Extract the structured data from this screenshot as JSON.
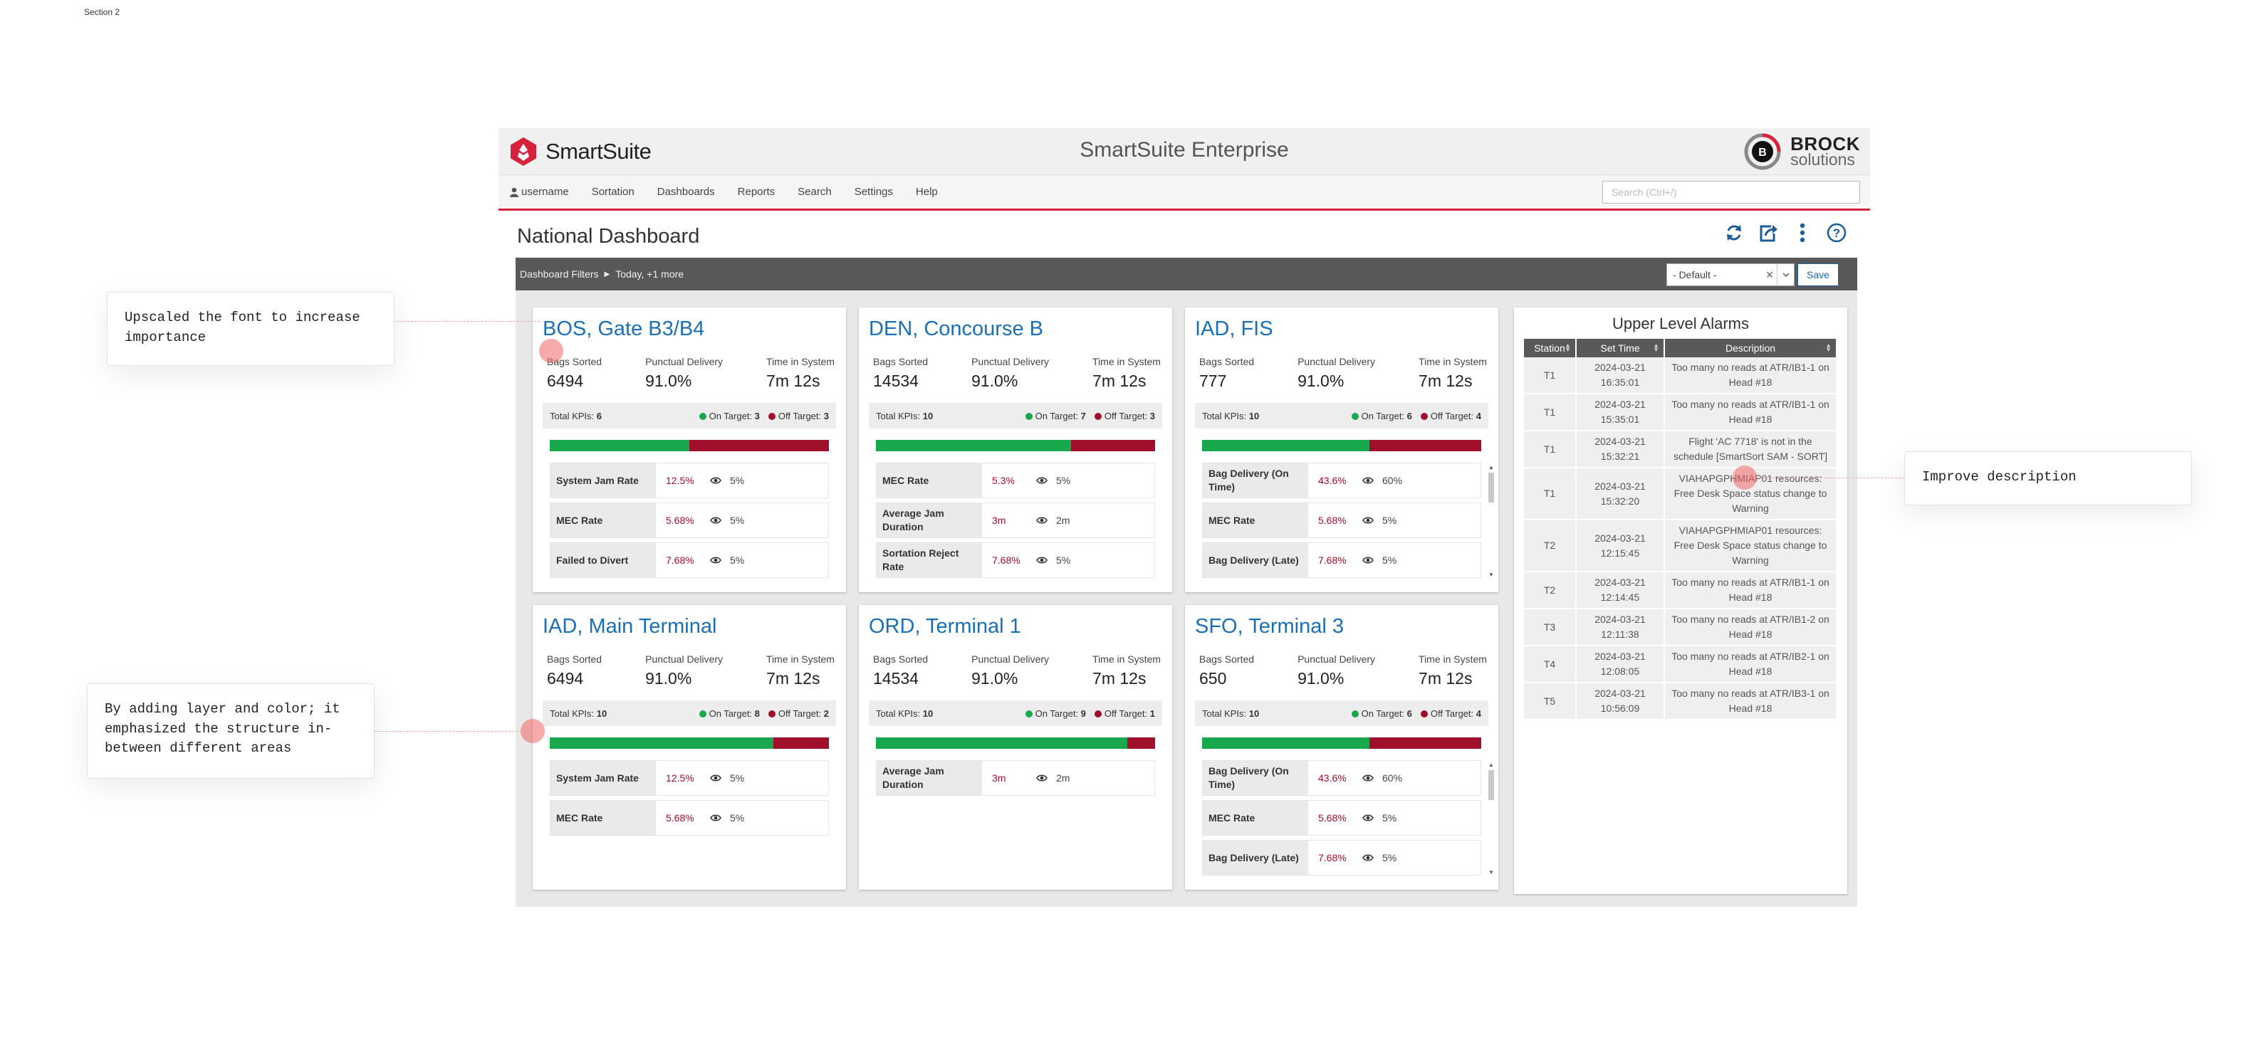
{
  "page": {
    "section_label": "Section 2"
  },
  "header": {
    "brand_name": "SmartSuite",
    "app_title": "SmartSuite Enterprise",
    "partner_logo_line1": "BROCK",
    "partner_logo_line2": "solutions",
    "partner_logo_initial": "B"
  },
  "nav": {
    "items": [
      {
        "label": "username",
        "icon": "user-icon"
      },
      {
        "label": "Sortation"
      },
      {
        "label": "Dashboards"
      },
      {
        "label": "Reports"
      },
      {
        "label": "Search"
      },
      {
        "label": "Settings"
      },
      {
        "label": "Help"
      }
    ],
    "search_placeholder": "Search (Ctrl+/)"
  },
  "page_title": "National Dashboard",
  "toolbar_icons": [
    "refresh-icon",
    "share-icon",
    "more-vertical-icon",
    "help-icon"
  ],
  "filters": {
    "label": "Dashboard Filters",
    "summary": "Today, +1 more",
    "preset_value": "- Default -",
    "save_label": "Save"
  },
  "metric_labels": {
    "bags_sorted": "Bags Sorted",
    "punctual_delivery": "Punctual Delivery",
    "time_in_system": "Time in System",
    "total_kpis": "Total KPIs:",
    "on_target": "On Target:",
    "off_target": "Off Target:"
  },
  "cards": [
    {
      "title": "BOS, Gate B3/B4",
      "bags_sorted": "6494",
      "punctual_delivery": "91.0%",
      "time_in_system": "7m 12s",
      "total_kpis": "6",
      "on_target": "3",
      "off_target": "3",
      "kpis": [
        {
          "name": "System Jam Rate",
          "value": "12.5%",
          "target": "5%"
        },
        {
          "name": "MEC Rate",
          "value": "5.68%",
          "target": "5%"
        },
        {
          "name": "Failed to Divert",
          "value": "7.68%",
          "target": "5%"
        }
      ]
    },
    {
      "title": "DEN, Concourse B",
      "bags_sorted": "14534",
      "punctual_delivery": "91.0%",
      "time_in_system": "7m 12s",
      "total_kpis": "10",
      "on_target": "7",
      "off_target": "3",
      "kpis": [
        {
          "name": "MEC Rate",
          "value": "5.3%",
          "target": "5%"
        },
        {
          "name": "Average Jam Duration",
          "value": "3m",
          "target": "2m"
        },
        {
          "name": "Sortation Reject Rate",
          "value": "7.68%",
          "target": "5%"
        }
      ]
    },
    {
      "title": "IAD, FIS",
      "bags_sorted": "777",
      "punctual_delivery": "91.0%",
      "time_in_system": "7m 12s",
      "total_kpis": "10",
      "on_target": "6",
      "off_target": "4",
      "kpis": [
        {
          "name": "Bag Delivery (On Time)",
          "value": "43.6%",
          "target": "60%"
        },
        {
          "name": "MEC Rate",
          "value": "5.68%",
          "target": "5%"
        },
        {
          "name": "Bag Delivery (Late)",
          "value": "7.68%",
          "target": "5%"
        }
      ]
    },
    {
      "title": "IAD, Main Terminal",
      "bags_sorted": "6494",
      "punctual_delivery": "91.0%",
      "time_in_system": "7m 12s",
      "total_kpis": "10",
      "on_target": "8",
      "off_target": "2",
      "kpis": [
        {
          "name": "System Jam Rate",
          "value": "12.5%",
          "target": "5%"
        },
        {
          "name": "MEC Rate",
          "value": "5.68%",
          "target": "5%"
        }
      ]
    },
    {
      "title": "ORD, Terminal 1",
      "bags_sorted": "14534",
      "punctual_delivery": "91.0%",
      "time_in_system": "7m 12s",
      "total_kpis": "10",
      "on_target": "9",
      "off_target": "1",
      "kpis": [
        {
          "name": "Average Jam Duration",
          "value": "3m",
          "target": "2m"
        }
      ]
    },
    {
      "title": "SFO, Terminal 3",
      "bags_sorted": "650",
      "punctual_delivery": "91.0%",
      "time_in_system": "7m 12s",
      "total_kpis": "10",
      "on_target": "6",
      "off_target": "4",
      "kpis": [
        {
          "name": "Bag Delivery (On Time)",
          "value": "43.6%",
          "target": "60%"
        },
        {
          "name": "MEC Rate",
          "value": "5.68%",
          "target": "5%"
        },
        {
          "name": "Bag Delivery (Late)",
          "value": "7.68%",
          "target": "5%"
        }
      ]
    }
  ],
  "alarms": {
    "title": "Upper Level Alarms",
    "columns": [
      "Station",
      "Set Time",
      "Description"
    ],
    "rows": [
      {
        "station": "T1",
        "date": "2024-03-21",
        "time": "16:35:01",
        "description": "Too many no reads at ATR/IB1-1 on Head #18"
      },
      {
        "station": "T1",
        "date": "2024-03-21",
        "time": "15:35:01",
        "description": "Too many no reads at ATR/IB1-1 on Head #18"
      },
      {
        "station": "T1",
        "date": "2024-03-21",
        "time": "15:32:21",
        "description": "Flight 'AC 7718' is not in the schedule [SmartSort SAM - SORT]"
      },
      {
        "station": "T1",
        "date": "2024-03-21",
        "time": "15:32:20",
        "description": "VIAHAPGPHMIAP01 resources: Free Desk Space status change to Warning"
      },
      {
        "station": "T2",
        "date": "2024-03-21",
        "time": "12:15:45",
        "description": "VIAHAPGPHMIAP01 resources: Free Desk Space status change to Warning"
      },
      {
        "station": "T2",
        "date": "2024-03-21",
        "time": "12:14:45",
        "description": "Too many no reads at ATR/IB1-1 on Head #18"
      },
      {
        "station": "T3",
        "date": "2024-03-21",
        "time": "12:11:38",
        "description": "Too many no reads at ATR/IB1-2 on Head #18"
      },
      {
        "station": "T4",
        "date": "2024-03-21",
        "time": "12:08:05",
        "description": "Too many no reads at ATR/IB2-1 on Head #18"
      },
      {
        "station": "T5",
        "date": "2024-03-21",
        "time": "10:56:09",
        "description": "Too many no reads at ATR/IB3-1 on Head #18"
      }
    ]
  },
  "annotations": {
    "font_note": "Upscaled the font to increase importance",
    "layer_note": "By adding layer and color; it emphasized the structure in-between different areas",
    "description_note": "Improve description"
  },
  "colors": {
    "accent_red": "#d6223a",
    "link_blue": "#1a6fb5",
    "on_target_green": "#1aa84f",
    "off_target_red": "#a0102a",
    "filter_bar": "#585858"
  }
}
